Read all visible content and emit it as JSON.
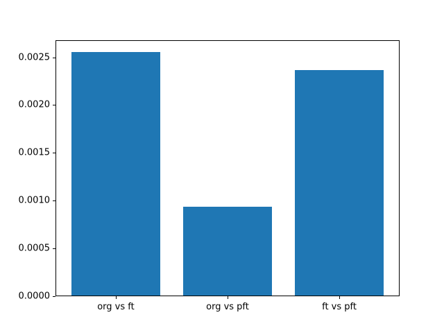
{
  "figure": {
    "background_color": "#ffffff",
    "spine_color": "#000000",
    "text_color": "#000000"
  },
  "chart_data": {
    "type": "bar",
    "title": "",
    "xlabel": "",
    "ylabel": "",
    "categories": [
      "org vs ft",
      "org vs pft",
      "ft vs pft"
    ],
    "values": [
      0.00255,
      0.00093,
      0.00236
    ],
    "bar_color": "#1f77b4",
    "bar_width_fraction": 0.8,
    "ylim": [
      0,
      0.002678
    ],
    "xlim": [
      -0.54,
      2.54
    ],
    "yticks": [
      0.0,
      0.0005,
      0.001,
      0.0015,
      0.002,
      0.0025
    ],
    "ytick_labels": [
      "0.0000",
      "0.0005",
      "0.0010",
      "0.0015",
      "0.0020",
      "0.0025"
    ],
    "grid": false,
    "legend": null
  }
}
